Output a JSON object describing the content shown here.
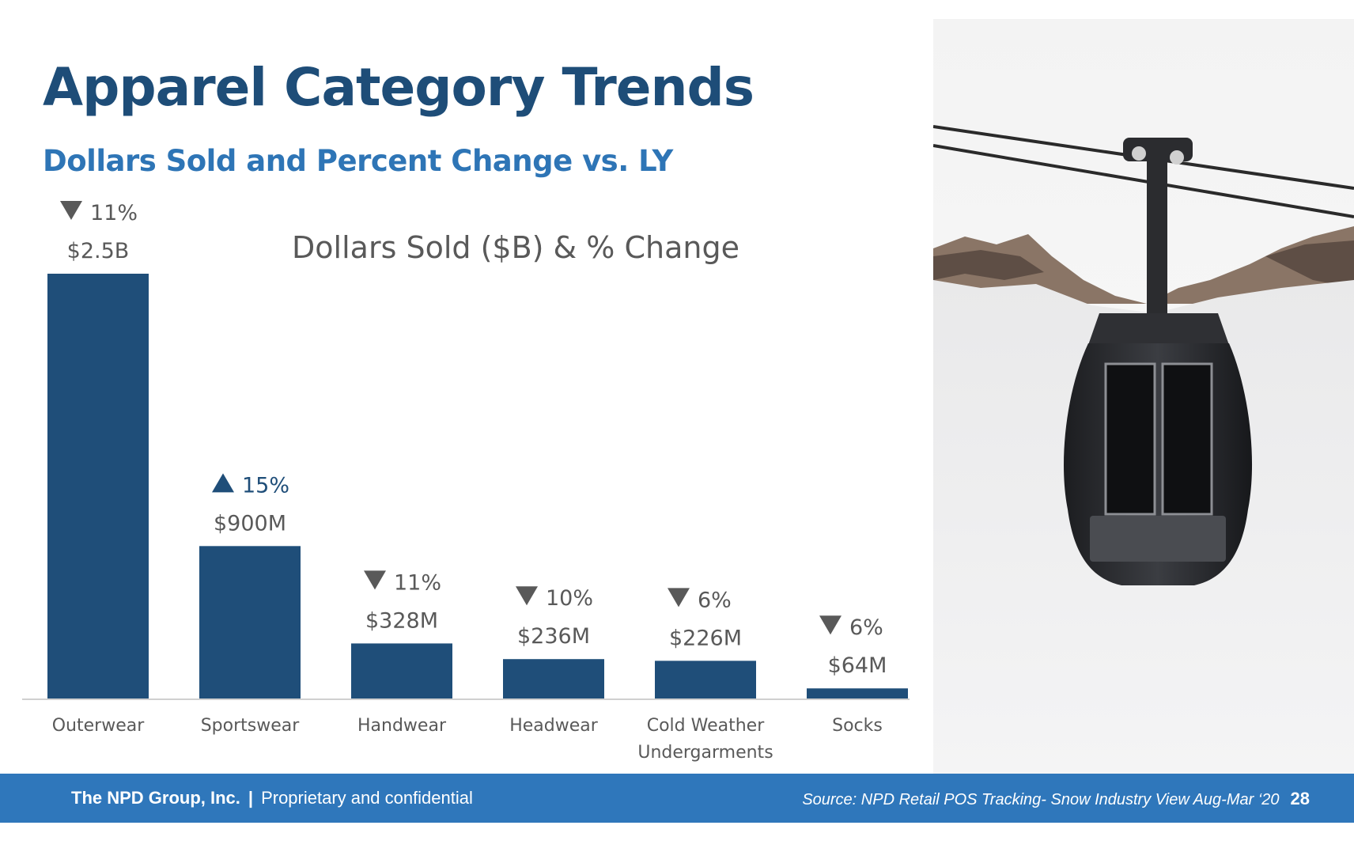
{
  "title": "Apparel Category Trends",
  "subtitle": "Dollars Sold and Percent Change vs. LY",
  "colors": {
    "title": "#1e4d78",
    "subtitle": "#2e75b6",
    "bar": "#1f4e79",
    "down": "#595959",
    "up": "#1f4e79",
    "footer": "#2f77bb"
  },
  "chart_data": {
    "type": "bar",
    "title": "Dollars Sold ($B) & % Change",
    "categories": [
      "Outerwear",
      "Sportswear",
      "Handwear",
      "Headwear",
      "Cold Weather Undergarments",
      "Socks"
    ],
    "values": [
      2.5,
      0.9,
      0.328,
      0.236,
      0.226,
      0.064
    ],
    "value_labels": [
      "$2.5B",
      "$900M",
      "$328M",
      "$236M",
      "$226M",
      "$64M"
    ],
    "pct_change": [
      -11,
      15,
      -11,
      -10,
      -6,
      -6
    ],
    "pct_labels": [
      "11%",
      "15%",
      "11%",
      "10%",
      "6%",
      "6%"
    ],
    "direction": [
      "down",
      "up",
      "down",
      "down",
      "down",
      "down"
    ],
    "ylim": [
      0,
      2.5
    ],
    "grid": false,
    "legend": "none"
  },
  "photo": {
    "subject": "ski gondola lift over snowy mountains"
  },
  "footer": {
    "company": "The NPD Group, Inc.",
    "separator": "|",
    "confidential": "Proprietary and confidential",
    "source": "Source: NPD Retail POS Tracking- Snow Industry View Aug-Mar ‘20",
    "page_number": "28"
  }
}
